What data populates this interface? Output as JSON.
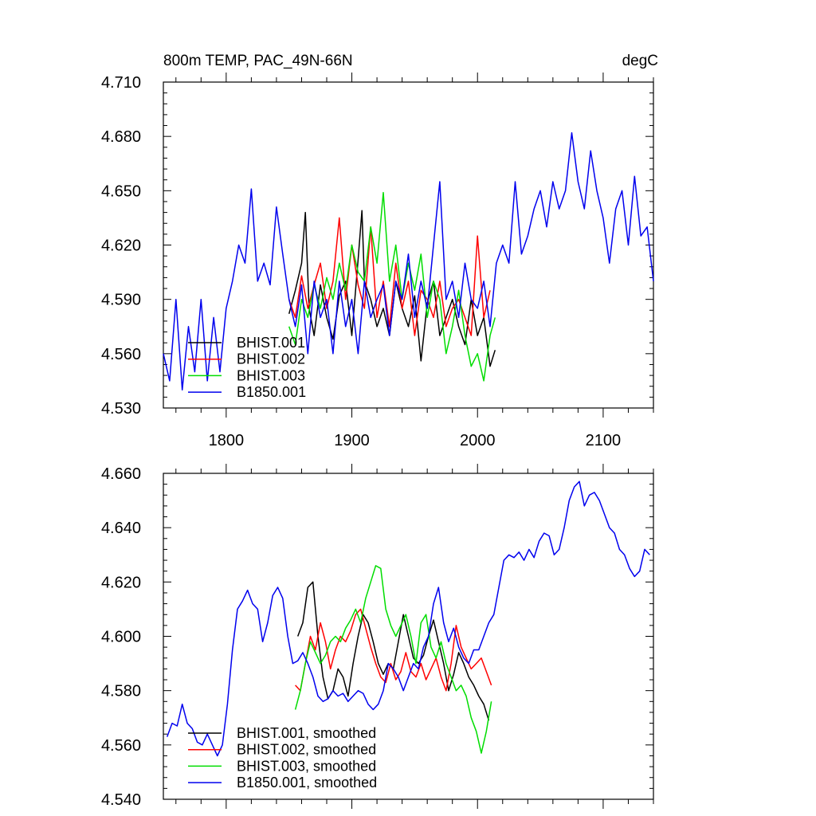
{
  "colors": {
    "black": "#000000",
    "red": "#ff0000",
    "green": "#00dd00",
    "blue": "#0000ee"
  },
  "chart_data": [
    {
      "type": "line",
      "title": "800m TEMP, PAC_49N-66N",
      "units": "degC",
      "xlim": [
        1750,
        2140
      ],
      "ylim": [
        4.53,
        4.71
      ],
      "xticks": [
        1800,
        1900,
        2000,
        2100
      ],
      "xtick_labels": [
        "1800",
        "1900",
        "2000",
        "2100"
      ],
      "yticks": [
        4.53,
        4.56,
        4.59,
        4.62,
        4.65,
        4.68,
        4.71
      ],
      "ytick_labels": [
        "4.530",
        "4.560",
        "4.590",
        "4.620",
        "4.650",
        "4.680",
        "4.710"
      ],
      "legend": [
        "BHIST.001",
        "BHIST.002",
        "BHIST.003",
        "B1850.001"
      ],
      "series": [
        {
          "name": "BHIST.001",
          "color": "#000000",
          "x": [
            1850,
            1855,
            1860,
            1863,
            1866,
            1870,
            1875,
            1880,
            1885,
            1890,
            1895,
            1900,
            1905,
            1908,
            1910,
            1915,
            1920,
            1925,
            1930,
            1935,
            1940,
            1945,
            1950,
            1955,
            1960,
            1965,
            1970,
            1975,
            1980,
            1985,
            1990,
            1995,
            2000,
            2005,
            2010,
            2014
          ],
          "y": [
            4.582,
            4.595,
            4.61,
            4.638,
            4.585,
            4.57,
            4.598,
            4.58,
            4.568,
            4.592,
            4.6,
            4.57,
            4.612,
            4.639,
            4.6,
            4.59,
            4.575,
            4.585,
            4.57,
            4.6,
            4.585,
            4.575,
            4.592,
            4.556,
            4.588,
            4.6,
            4.57,
            4.58,
            4.59,
            4.575,
            4.565,
            4.59,
            4.57,
            4.58,
            4.553,
            4.562
          ]
        },
        {
          "name": "BHIST.002",
          "color": "#ff0000",
          "x": [
            1850,
            1855,
            1860,
            1865,
            1870,
            1875,
            1880,
            1885,
            1890,
            1895,
            1900,
            1905,
            1910,
            1915,
            1920,
            1925,
            1930,
            1935,
            1940,
            1945,
            1950,
            1955,
            1960,
            1965,
            1970,
            1975,
            1980,
            1985,
            1990,
            1995,
            2000,
            2005,
            2010
          ],
          "y": [
            4.59,
            4.58,
            4.603,
            4.585,
            4.598,
            4.61,
            4.585,
            4.6,
            4.635,
            4.59,
            4.62,
            4.598,
            4.585,
            4.63,
            4.58,
            4.6,
            4.575,
            4.61,
            4.585,
            4.6,
            4.57,
            4.595,
            4.59,
            4.58,
            4.6,
            4.575,
            4.585,
            4.59,
            4.58,
            4.57,
            4.625,
            4.58,
            4.595
          ]
        },
        {
          "name": "BHIST.003",
          "color": "#00dd00",
          "x": [
            1850,
            1855,
            1860,
            1865,
            1870,
            1875,
            1880,
            1885,
            1890,
            1895,
            1900,
            1905,
            1910,
            1915,
            1920,
            1925,
            1930,
            1935,
            1940,
            1945,
            1950,
            1955,
            1960,
            1965,
            1970,
            1975,
            1980,
            1985,
            1990,
            1995,
            2000,
            2005,
            2010,
            2014
          ],
          "y": [
            4.575,
            4.565,
            4.59,
            4.58,
            4.598,
            4.585,
            4.602,
            4.59,
            4.61,
            4.595,
            4.62,
            4.605,
            4.6,
            4.63,
            4.61,
            4.649,
            4.6,
            4.62,
            4.59,
            4.61,
            4.595,
            4.615,
            4.58,
            4.6,
            4.59,
            4.56,
            4.575,
            4.595,
            4.57,
            4.553,
            4.56,
            4.545,
            4.57,
            4.58
          ]
        },
        {
          "name": "B1850.001",
          "color": "#0000ee",
          "x": [
            1750,
            1755,
            1760,
            1765,
            1770,
            1775,
            1780,
            1785,
            1790,
            1795,
            1800,
            1805,
            1810,
            1815,
            1820,
            1825,
            1830,
            1835,
            1840,
            1845,
            1850,
            1855,
            1860,
            1865,
            1870,
            1875,
            1880,
            1885,
            1890,
            1895,
            1900,
            1905,
            1910,
            1915,
            1920,
            1925,
            1930,
            1935,
            1940,
            1945,
            1950,
            1955,
            1960,
            1965,
            1970,
            1975,
            1980,
            1985,
            1990,
            1995,
            2000,
            2005,
            2010,
            2015,
            2020,
            2025,
            2030,
            2035,
            2040,
            2045,
            2050,
            2055,
            2060,
            2065,
            2070,
            2075,
            2080,
            2085,
            2090,
            2095,
            2100,
            2105,
            2110,
            2115,
            2120,
            2125,
            2130,
            2135,
            2140
          ],
          "y": [
            4.56,
            4.545,
            4.59,
            4.54,
            4.575,
            4.55,
            4.59,
            4.545,
            4.58,
            4.55,
            4.585,
            4.6,
            4.62,
            4.61,
            4.651,
            4.6,
            4.61,
            4.598,
            4.641,
            4.615,
            4.59,
            4.575,
            4.598,
            4.56,
            4.6,
            4.58,
            4.59,
            4.56,
            4.6,
            4.575,
            4.59,
            4.56,
            4.6,
            4.58,
            4.59,
            4.598,
            4.57,
            4.6,
            4.59,
            4.615,
            4.58,
            4.6,
            4.585,
            4.62,
            4.655,
            4.59,
            4.6,
            4.58,
            4.61,
            4.59,
            4.585,
            4.6,
            4.575,
            4.61,
            4.62,
            4.61,
            4.655,
            4.615,
            4.625,
            4.64,
            4.65,
            4.63,
            4.655,
            4.64,
            4.65,
            4.682,
            4.655,
            4.64,
            4.672,
            4.65,
            4.635,
            4.61,
            4.64,
            4.65,
            4.62,
            4.658,
            4.625,
            4.63,
            4.6
          ]
        }
      ]
    },
    {
      "type": "line",
      "xlim": [
        1750,
        2140
      ],
      "ylim": [
        4.54,
        4.66
      ],
      "xticks": [
        1800,
        1900,
        2000,
        2100
      ],
      "yticks": [
        4.54,
        4.56,
        4.58,
        4.6,
        4.62,
        4.64,
        4.66
      ],
      "ytick_labels": [
        "4.540",
        "4.560",
        "4.580",
        "4.600",
        "4.620",
        "4.640",
        "4.660"
      ],
      "legend": [
        "BHIST.001, smoothed",
        "BHIST.002, smoothed",
        "BHIST.003, smoothed",
        "B1850.001, smoothed"
      ],
      "series": [
        {
          "name": "BHIST.001, smoothed",
          "color": "#000000",
          "x": [
            1857,
            1861,
            1865,
            1869,
            1873,
            1877,
            1881,
            1885,
            1889,
            1893,
            1897,
            1901,
            1905,
            1909,
            1913,
            1917,
            1921,
            1925,
            1929,
            1933,
            1937,
            1941,
            1945,
            1949,
            1953,
            1957,
            1961,
            1965,
            1969,
            1973,
            1977,
            1981,
            1985,
            1989,
            1993,
            1997,
            2001,
            2005,
            2009
          ],
          "y": [
            4.6,
            4.605,
            4.618,
            4.62,
            4.6,
            4.585,
            4.577,
            4.58,
            4.588,
            4.585,
            4.578,
            4.59,
            4.6,
            4.608,
            4.605,
            4.598,
            4.59,
            4.586,
            4.59,
            4.588,
            4.598,
            4.608,
            4.6,
            4.592,
            4.59,
            4.593,
            4.6,
            4.606,
            4.598,
            4.59,
            4.58,
            4.586,
            4.594,
            4.59,
            4.585,
            4.582,
            4.578,
            4.575,
            4.569
          ]
        },
        {
          "name": "BHIST.002, smoothed",
          "color": "#ff0000",
          "x": [
            1855,
            1859,
            1863,
            1867,
            1871,
            1875,
            1879,
            1883,
            1887,
            1891,
            1895,
            1899,
            1903,
            1907,
            1911,
            1915,
            1919,
            1923,
            1927,
            1931,
            1935,
            1939,
            1943,
            1947,
            1951,
            1955,
            1959,
            1963,
            1967,
            1971,
            1975,
            1979,
            1983,
            1987,
            1991,
            1995,
            1999,
            2003,
            2007,
            2011
          ],
          "y": [
            4.582,
            4.58,
            4.59,
            4.6,
            4.595,
            4.605,
            4.598,
            4.588,
            4.595,
            4.6,
            4.598,
            4.602,
            4.608,
            4.61,
            4.603,
            4.596,
            4.59,
            4.585,
            4.583,
            4.59,
            4.584,
            4.587,
            4.594,
            4.587,
            4.585,
            4.59,
            4.584,
            4.588,
            4.592,
            4.585,
            4.58,
            4.59,
            4.604,
            4.596,
            4.592,
            4.588,
            4.59,
            4.592,
            4.587,
            4.582
          ]
        },
        {
          "name": "BHIST.003, smoothed",
          "color": "#00dd00",
          "x": [
            1855,
            1859,
            1863,
            1867,
            1871,
            1875,
            1879,
            1883,
            1887,
            1891,
            1895,
            1899,
            1903,
            1907,
            1911,
            1915,
            1919,
            1923,
            1927,
            1931,
            1935,
            1939,
            1943,
            1947,
            1951,
            1955,
            1959,
            1963,
            1967,
            1971,
            1975,
            1979,
            1983,
            1987,
            1991,
            1995,
            1999,
            2003,
            2007,
            2011
          ],
          "y": [
            4.573,
            4.58,
            4.59,
            4.598,
            4.594,
            4.59,
            4.593,
            4.598,
            4.6,
            4.598,
            4.603,
            4.606,
            4.61,
            4.605,
            4.614,
            4.62,
            4.626,
            4.625,
            4.61,
            4.604,
            4.6,
            4.604,
            4.608,
            4.6,
            4.59,
            4.605,
            4.608,
            4.596,
            4.592,
            4.598,
            4.59,
            4.585,
            4.58,
            4.582,
            4.578,
            4.57,
            4.565,
            4.557,
            4.565,
            4.576
          ]
        },
        {
          "name": "B1850.001, smoothed",
          "color": "#0000ee",
          "x": [
            1753,
            1757,
            1761,
            1765,
            1769,
            1773,
            1777,
            1781,
            1785,
            1789,
            1793,
            1797,
            1801,
            1805,
            1809,
            1813,
            1817,
            1821,
            1825,
            1829,
            1833,
            1837,
            1841,
            1845,
            1849,
            1853,
            1857,
            1861,
            1865,
            1869,
            1873,
            1877,
            1881,
            1885,
            1889,
            1893,
            1897,
            1901,
            1905,
            1909,
            1913,
            1917,
            1921,
            1925,
            1929,
            1933,
            1937,
            1941,
            1945,
            1949,
            1953,
            1957,
            1961,
            1965,
            1969,
            1973,
            1977,
            1981,
            1985,
            1989,
            1993,
            1997,
            2001,
            2005,
            2009,
            2013,
            2017,
            2021,
            2025,
            2029,
            2033,
            2037,
            2041,
            2045,
            2049,
            2053,
            2057,
            2061,
            2065,
            2069,
            2073,
            2077,
            2081,
            2085,
            2089,
            2093,
            2097,
            2101,
            2105,
            2109,
            2113,
            2117,
            2121,
            2125,
            2129,
            2133,
            2137
          ],
          "y": [
            4.563,
            4.568,
            4.567,
            4.575,
            4.568,
            4.566,
            4.561,
            4.56,
            4.564,
            4.56,
            4.556,
            4.56,
            4.575,
            4.595,
            4.61,
            4.613,
            4.617,
            4.612,
            4.61,
            4.598,
            4.605,
            4.615,
            4.618,
            4.614,
            4.6,
            4.59,
            4.591,
            4.594,
            4.59,
            4.585,
            4.578,
            4.576,
            4.577,
            4.58,
            4.578,
            4.579,
            4.576,
            4.578,
            4.58,
            4.579,
            4.575,
            4.573,
            4.575,
            4.58,
            4.59,
            4.588,
            4.585,
            4.58,
            4.585,
            4.59,
            4.588,
            4.596,
            4.6,
            4.612,
            4.618,
            4.605,
            4.598,
            4.603,
            4.596,
            4.592,
            4.59,
            4.595,
            4.595,
            4.6,
            4.605,
            4.608,
            4.618,
            4.628,
            4.63,
            4.629,
            4.631,
            4.628,
            4.632,
            4.629,
            4.635,
            4.638,
            4.637,
            4.63,
            4.632,
            4.64,
            4.65,
            4.655,
            4.657,
            4.648,
            4.652,
            4.653,
            4.65,
            4.645,
            4.64,
            4.638,
            4.632,
            4.63,
            4.625,
            4.622,
            4.624,
            4.632,
            4.63
          ]
        }
      ]
    }
  ]
}
